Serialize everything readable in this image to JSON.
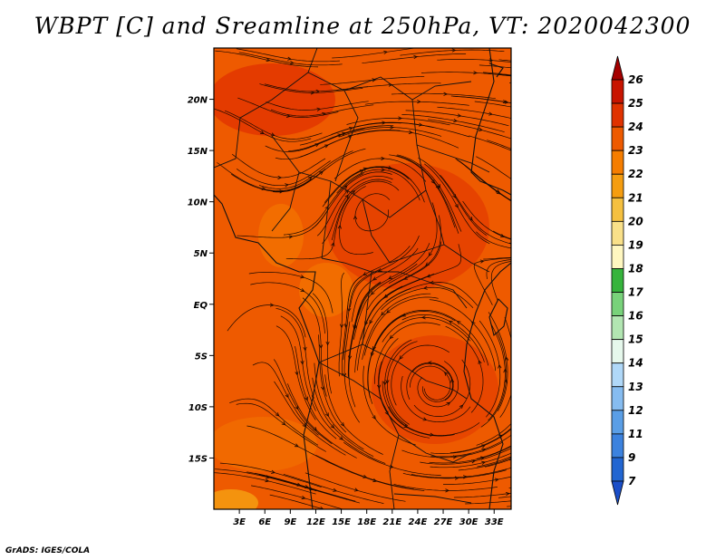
{
  "title": "WBPT [C] and Sreamline at 250hPa, VT: 2020042300",
  "credit": "GrADS: IGES/COLA",
  "map": {
    "lat_range": [
      -20,
      25
    ],
    "lon_range": [
      0,
      35
    ],
    "lat_labels": [
      "20N",
      "15N",
      "10N",
      "5N",
      "EQ",
      "5S",
      "10S",
      "15S"
    ],
    "lat_values": [
      20,
      15,
      10,
      5,
      0,
      -5,
      -10,
      -15
    ],
    "lon_labels": [
      "3E",
      "6E",
      "9E",
      "12E",
      "15E",
      "18E",
      "21E",
      "24E",
      "27E",
      "30E",
      "33E"
    ],
    "lon_values": [
      3,
      6,
      9,
      12,
      15,
      18,
      21,
      24,
      27,
      30,
      33
    ]
  },
  "colorbar": {
    "levels": [
      "26",
      "25",
      "24",
      "23",
      "22",
      "21",
      "20",
      "19",
      "18",
      "17",
      "16",
      "15",
      "14",
      "13",
      "12",
      "11",
      "9",
      "7"
    ],
    "colors": [
      "#a50000",
      "#c81400",
      "#e03200",
      "#ee5a00",
      "#f57d00",
      "#f59d10",
      "#f5c040",
      "#f9e089",
      "#fff7c0",
      "#36b43c",
      "#78d27a",
      "#b2e6b2",
      "#e6f8ec",
      "#b0d8f8",
      "#86bcf0",
      "#5a9ee6",
      "#3c82de",
      "#2266d2",
      "#1a4ec8"
    ]
  }
}
